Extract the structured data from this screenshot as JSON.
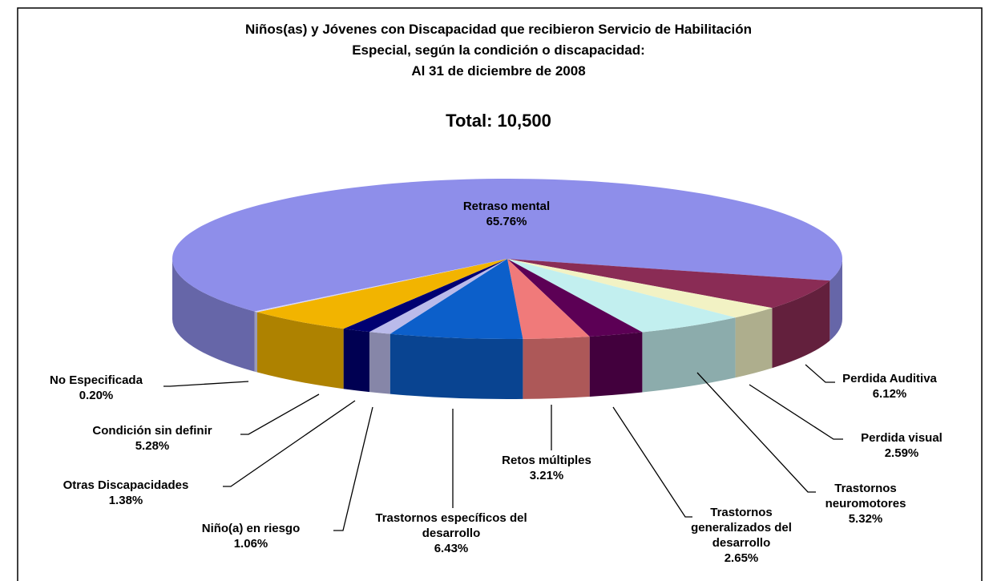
{
  "chart_data": {
    "type": "pie3d",
    "title": [
      "Niños(as) y Jóvenes con Discapacidad que recibieron Servicio de Habilitación",
      "Especial, según la condición o discapacidad:",
      "Al 31 de diciembre de 2008"
    ],
    "subtitle": "Total:  10,500",
    "categories": [
      "Retraso mental",
      "Perdida Auditiva",
      "Perdida visual",
      "Trastornos neuromotores",
      "Trastornos generalizados del desarrollo",
      "Retos múltiples",
      "Trastornos específicos del desarrollo",
      "Niño(a) en riesgo",
      "Otras Discapacidades",
      "Condición sin definir",
      "No Especificada"
    ],
    "values": [
      65.76,
      6.12,
      2.59,
      5.32,
      2.65,
      3.21,
      6.43,
      1.06,
      1.38,
      5.28,
      0.2
    ],
    "value_labels": [
      "65.76%",
      "6.12%",
      "2.59%",
      "5.32%",
      "2.65%",
      "3.21%",
      "6.43%",
      "1.06%",
      "1.38%",
      "5.28%",
      "0.20%"
    ],
    "colors": [
      "#8e8eea",
      "#8a2c55",
      "#f2f2c4",
      "#c2efef",
      "#5c0055",
      "#f07a7a",
      "#0c5fca",
      "#babaea",
      "#000072",
      "#f2b400",
      "#d6d6ff"
    ]
  }
}
